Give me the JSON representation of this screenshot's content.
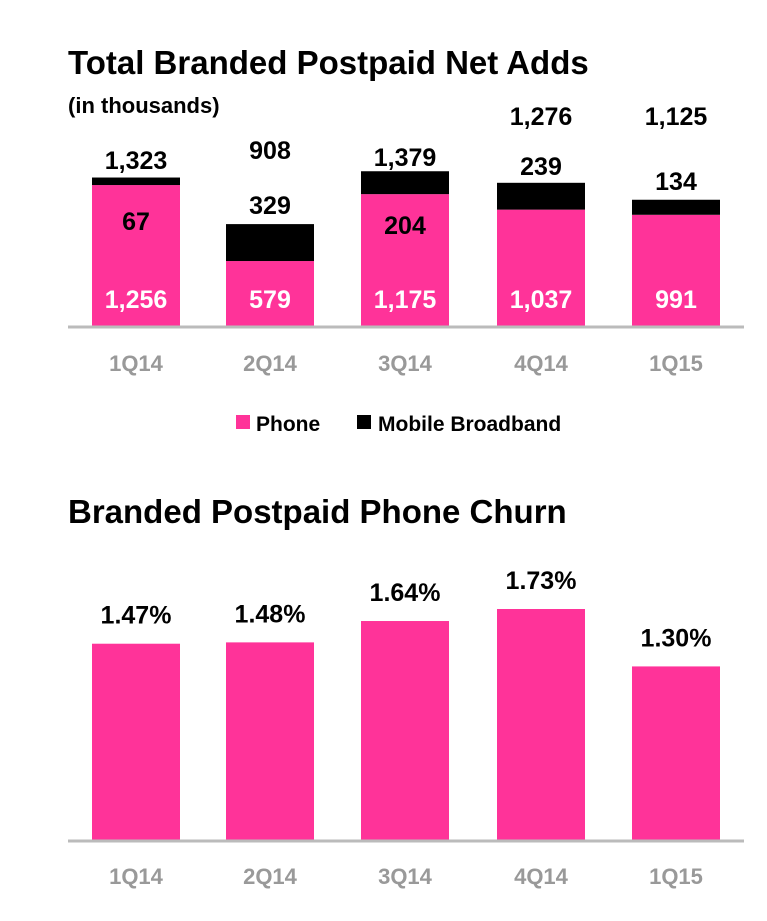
{
  "chart_data": [
    {
      "type": "bar",
      "stacked": true,
      "title": "Total Branded Postpaid Net Adds",
      "subtitle": "(in thousands)",
      "categories": [
        "1Q14",
        "2Q14",
        "3Q14",
        "4Q14",
        "1Q15"
      ],
      "series": [
        {
          "name": "Phone",
          "values": [
            1256,
            579,
            1175,
            1037,
            991
          ],
          "labels": [
            "1,256",
            "579",
            "1,175",
            "1,037",
            "991"
          ]
        },
        {
          "name": "Mobile Broadband",
          "values": [
            67,
            329,
            204,
            239,
            134
          ],
          "labels": [
            "67",
            "329",
            "204",
            "239",
            "134"
          ]
        }
      ],
      "totals": [
        1323,
        908,
        1379,
        1276,
        1125
      ],
      "total_labels": [
        "1,323",
        "908",
        "1,379",
        "1,276",
        "1,125"
      ],
      "legend_position": "bottom",
      "ylim": [
        0,
        1800
      ]
    },
    {
      "type": "bar",
      "title": "Branded Postpaid Phone Churn",
      "categories": [
        "1Q14",
        "2Q14",
        "3Q14",
        "4Q14",
        "1Q15"
      ],
      "values": [
        1.47,
        1.48,
        1.64,
        1.73,
        1.3
      ],
      "value_labels": [
        "1.47%",
        "1.48%",
        "1.64%",
        "1.73%",
        "1.30%"
      ],
      "ylim": [
        0,
        2.1
      ]
    }
  ],
  "colors": {
    "phone": "#ff3399",
    "mobile_broadband": "#000000",
    "axis": "#bbbbbb",
    "category_label": "#999999",
    "phone_label_text": "#ffffff",
    "value_label_text": "#000000"
  }
}
